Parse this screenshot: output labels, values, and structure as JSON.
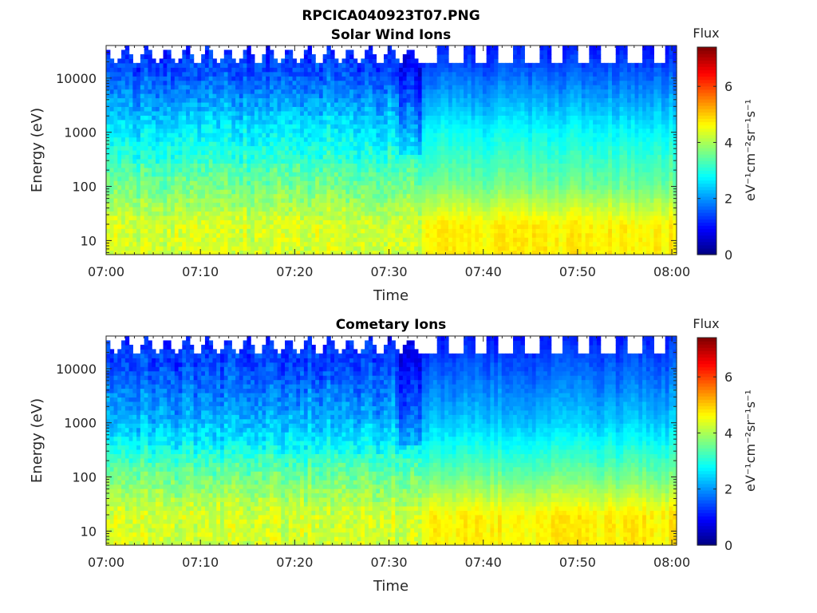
{
  "figure_title": "RPCICA040923T07.PNG",
  "colors": {
    "axis": "#262626",
    "missing": "#ffffff"
  },
  "chart_data": [
    {
      "type": "heatmap",
      "title": "Solar Wind Ions",
      "xlabel": "Time",
      "ylabel": "Energy (eV)",
      "x_ticks": [
        "07:00",
        "07:10",
        "07:20",
        "07:30",
        "07:40",
        "07:50",
        "08:00"
      ],
      "x_range_minutes": [
        0,
        60.5
      ],
      "y_scale": "log",
      "y_ticks": [
        "10",
        "100",
        "1000",
        "10000"
      ],
      "y_range": [
        5.5,
        40000
      ],
      "colorbar": {
        "title": "Flux",
        "label": "eV⁻¹cm⁻²sr⁻¹s⁻¹",
        "ticks": [
          "0",
          "2",
          "4",
          "6"
        ],
        "range": [
          0,
          7.4
        ],
        "colormap": "jet"
      },
      "regime_change_minute": 33.5,
      "typical_flux": {
        "low_energy_before_change": 4.3,
        "low_energy_after_change": 4.7,
        "mid_energy_1000eV": 2.8,
        "high_energy_10000eV": 1.7
      }
    },
    {
      "type": "heatmap",
      "title": "Cometary Ions",
      "xlabel": "Time",
      "ylabel": "Energy (eV)",
      "x_ticks": [
        "07:00",
        "07:10",
        "07:20",
        "07:30",
        "07:40",
        "07:50",
        "08:00"
      ],
      "x_range_minutes": [
        0,
        60.5
      ],
      "y_scale": "log",
      "y_ticks": [
        "10",
        "100",
        "1000",
        "10000"
      ],
      "y_range": [
        5.5,
        40000
      ],
      "colorbar": {
        "title": "Flux",
        "label": "eV⁻¹cm⁻²sr⁻¹s⁻¹",
        "ticks": [
          "0",
          "2",
          "4",
          "6"
        ],
        "range": [
          0,
          7.4
        ],
        "colormap": "jet"
      },
      "regime_change_minute": 33.5,
      "typical_flux": {
        "low_energy_before_change": 4.3,
        "low_energy_after_change": 4.7,
        "mid_energy_1000eV": 2.4,
        "high_energy_10000eV": 1.6
      }
    }
  ]
}
